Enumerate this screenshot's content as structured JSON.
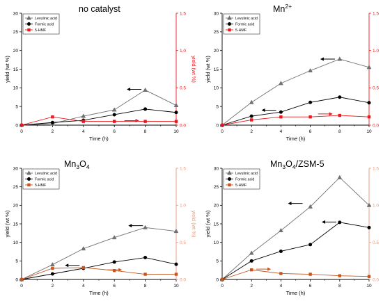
{
  "colors": {
    "levulinic": "#707070",
    "formic": "#000000",
    "hmf": "#e8191f",
    "hmf_dark": "#c4561e",
    "right_axis": "#e8191f",
    "right_axis_soft": "#e49a7c",
    "axis": "#000000"
  },
  "chart_data": [
    {
      "type": "line",
      "title": "no catalyst",
      "title_parts": [
        {
          "t": "no catalyst",
          "sub": false,
          "sup": false
        }
      ],
      "xlabel": "Time (h)",
      "ylabel": "yield (wt %)",
      "y2label": "yield (wt %)",
      "x": [
        0,
        2,
        4,
        6,
        8,
        10
      ],
      "xlim": [
        0,
        10
      ],
      "ylim": [
        0,
        30
      ],
      "y2lim": [
        0,
        1.5
      ],
      "x_ticks": [
        "0",
        "2",
        "4",
        "6",
        "8",
        "10"
      ],
      "y_ticks": [
        "0",
        "5",
        "10",
        "15",
        "20",
        "25",
        "30"
      ],
      "y2_ticks": [
        "0.0",
        "0.5",
        "1.0",
        "1.5"
      ],
      "legend": "top-left",
      "right_axis_color": "red",
      "series": [
        {
          "name": "Levulinic acid",
          "axis": "left",
          "marker": "triangle",
          "color": "levulinic",
          "values": [
            0,
            0.4,
            2.4,
            4.1,
            9.4,
            5.3
          ]
        },
        {
          "name": "Formic acid",
          "axis": "left",
          "marker": "circle",
          "color": "formic",
          "values": [
            0,
            0.7,
            1.3,
            2.8,
            4.3,
            3.4
          ]
        },
        {
          "name": "5-HMF",
          "axis": "right",
          "marker": "square",
          "color": "hmf",
          "values": [
            0,
            0.11,
            0.05,
            0.05,
            0.05,
            0.05
          ]
        }
      ],
      "arrows": [
        {
          "direction": "left",
          "x": 7.3,
          "y": 9.6,
          "axis": "left",
          "color": "formic"
        },
        {
          "direction": "right",
          "x": 7.1,
          "y": 0.06,
          "axis": "right",
          "color": "hmf"
        }
      ]
    },
    {
      "type": "line",
      "title": "Mn2+",
      "title_parts": [
        {
          "t": "Mn",
          "sub": false,
          "sup": false
        },
        {
          "t": "2+",
          "sub": false,
          "sup": true
        }
      ],
      "xlabel": "Time (h)",
      "ylabel": "yield (wt %)",
      "y2label": "yield (wt %)",
      "x": [
        0,
        2,
        4,
        6,
        8,
        10
      ],
      "xlim": [
        0,
        10
      ],
      "ylim": [
        0,
        30
      ],
      "y2lim": [
        0,
        1.5
      ],
      "x_ticks": [
        "0",
        "2",
        "4",
        "6",
        "8",
        "10"
      ],
      "y_ticks": [
        "0",
        "5",
        "10",
        "15",
        "20",
        "25",
        "30"
      ],
      "y2_ticks": [
        "0.0",
        "0.5",
        "1.0",
        "1.5"
      ],
      "legend": "top-left",
      "right_axis_color": "red",
      "series": [
        {
          "name": "Levulinic acid",
          "axis": "left",
          "marker": "triangle",
          "color": "levulinic",
          "values": [
            0,
            6.1,
            11.2,
            14.6,
            17.7,
            15.5
          ]
        },
        {
          "name": "Formic acid",
          "axis": "left",
          "marker": "circle",
          "color": "formic",
          "values": [
            0,
            2.4,
            3.5,
            6.1,
            7.5,
            6.0
          ]
        },
        {
          "name": "5-HMF",
          "axis": "right",
          "marker": "square",
          "color": "hmf",
          "values": [
            0,
            0.07,
            0.11,
            0.11,
            0.13,
            0.11
          ]
        }
      ],
      "arrows": [
        {
          "direction": "left",
          "x": 7.2,
          "y": 17.7,
          "axis": "left",
          "color": "formic"
        },
        {
          "direction": "left",
          "x": 3.2,
          "y": 4.0,
          "axis": "left",
          "color": "formic"
        },
        {
          "direction": "right",
          "x": 7.0,
          "y": 0.15,
          "axis": "right",
          "color": "hmf"
        }
      ]
    },
    {
      "type": "line",
      "title": "Mn3O4",
      "title_parts": [
        {
          "t": "Mn",
          "sub": false,
          "sup": false
        },
        {
          "t": "3",
          "sub": true,
          "sup": false
        },
        {
          "t": "O",
          "sub": false,
          "sup": false
        },
        {
          "t": "4",
          "sub": true,
          "sup": false
        }
      ],
      "xlabel": "Time (h)",
      "ylabel": "yield (wt %)",
      "y2label": "yield (wt %)",
      "x": [
        0,
        2,
        4,
        6,
        8,
        10
      ],
      "xlim": [
        0,
        10
      ],
      "ylim": [
        0,
        30
      ],
      "y2lim": [
        0,
        1.5
      ],
      "x_ticks": [
        "0",
        "2",
        "4",
        "6",
        "8",
        "10"
      ],
      "y_ticks": [
        "0",
        "5",
        "10",
        "15",
        "20",
        "25",
        "30"
      ],
      "y2_ticks": [
        "0.0",
        "0.5",
        "1.0",
        "1.5"
      ],
      "legend": "top-left",
      "right_axis_color": "soft",
      "series": [
        {
          "name": "Levulinic acid",
          "axis": "left",
          "marker": "triangle",
          "color": "levulinic",
          "values": [
            0,
            4.0,
            8.3,
            11.3,
            14.0,
            13.0
          ]
        },
        {
          "name": "Formic acid",
          "axis": "left",
          "marker": "circle",
          "color": "formic",
          "values": [
            0,
            1.5,
            3.0,
            4.7,
            5.9,
            4.1
          ]
        },
        {
          "name": "5-HMF",
          "axis": "right",
          "marker": "square",
          "color": "hmf_dark",
          "values": [
            0,
            0.15,
            0.16,
            0.12,
            0.07,
            0.07
          ]
        }
      ],
      "arrows": [
        {
          "direction": "left",
          "x": 7.4,
          "y": 14.5,
          "axis": "left",
          "color": "formic"
        },
        {
          "direction": "left",
          "x": 3.3,
          "y": 3.8,
          "axis": "left",
          "color": "formic"
        },
        {
          "direction": "right",
          "x": 6.0,
          "y": 0.13,
          "axis": "right",
          "color": "hmf_dark"
        }
      ]
    },
    {
      "type": "line",
      "title": "Mn3O4/ZSM-5",
      "title_parts": [
        {
          "t": "Mn",
          "sub": false,
          "sup": false
        },
        {
          "t": "3",
          "sub": true,
          "sup": false
        },
        {
          "t": "O",
          "sub": false,
          "sup": false
        },
        {
          "t": "4",
          "sub": true,
          "sup": false
        },
        {
          "t": "/ZSM-5",
          "sub": false,
          "sup": false
        }
      ],
      "xlabel": "Time (h)",
      "ylabel": "yield (wt %)",
      "y2label": "yield (wt %)",
      "x": [
        0,
        2,
        4,
        6,
        8,
        10
      ],
      "xlim": [
        0,
        10
      ],
      "ylim": [
        0,
        30
      ],
      "y2lim": [
        0,
        1.5
      ],
      "x_ticks": [
        "0",
        "2",
        "4",
        "6",
        "8",
        "10"
      ],
      "y_ticks": [
        "0",
        "5",
        "10",
        "15",
        "20",
        "25",
        "30"
      ],
      "y2_ticks": [
        "0.0",
        "0.5",
        "1.0",
        "1.5"
      ],
      "legend": "top-left",
      "right_axis_color": "soft",
      "series": [
        {
          "name": "Levulinic acid",
          "axis": "left",
          "marker": "triangle",
          "color": "levulinic",
          "values": [
            0,
            7.1,
            13.2,
            19.6,
            27.5,
            20.0
          ]
        },
        {
          "name": "Formic acid",
          "axis": "left",
          "marker": "circle",
          "color": "formic",
          "values": [
            0,
            5.0,
            7.6,
            9.4,
            15.4,
            14.0
          ]
        },
        {
          "name": "5-HMF",
          "axis": "right",
          "marker": "square",
          "color": "hmf_dark",
          "values": [
            0,
            0.13,
            0.08,
            0.07,
            0.05,
            0.04
          ]
        }
      ],
      "arrows": [
        {
          "direction": "left",
          "x": 5.0,
          "y": 20.5,
          "axis": "left",
          "color": "formic"
        },
        {
          "direction": "left",
          "x": 7.3,
          "y": 15.5,
          "axis": "left",
          "color": "formic"
        },
        {
          "direction": "right",
          "x": 2.8,
          "y": 0.14,
          "axis": "right",
          "color": "hmf_dark"
        }
      ]
    }
  ]
}
